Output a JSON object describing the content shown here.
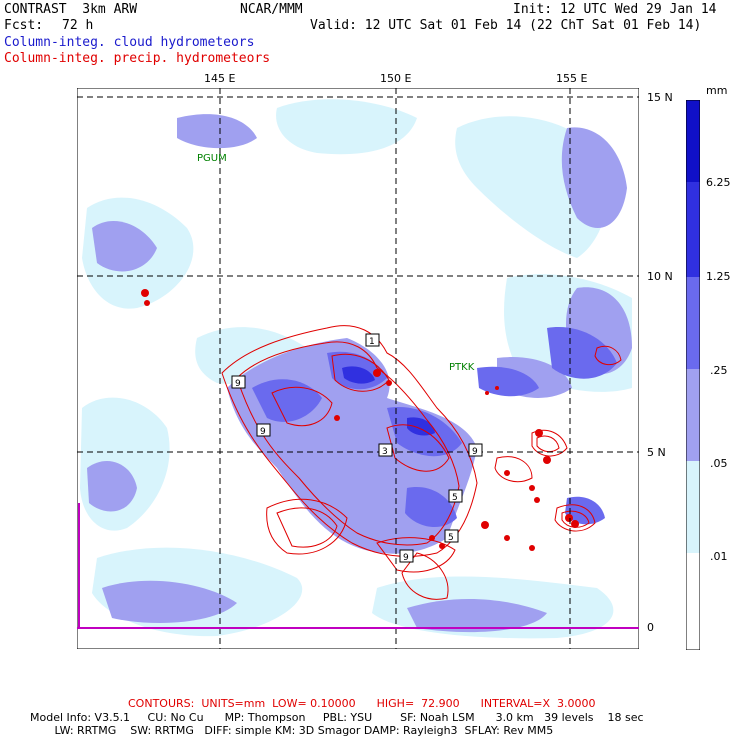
{
  "header": {
    "model": "CONTRAST  3km ARW",
    "center": "NCAR/MMM",
    "init": "Init: 12 UTC Wed 29 Jan 14",
    "fcst_label": "Fcst:",
    "fcst_value": "72 h",
    "valid": "Valid: 12 UTC Sat 01 Feb 14 (22 ChT Sat 01 Feb 14)",
    "field1": "Column-integ. cloud hydrometeors",
    "field2": "Column-integ. precip. hydrometeors"
  },
  "map": {
    "lon_labels": [
      "145 E",
      "150 E",
      "155 E"
    ],
    "lat_labels": [
      "15 N",
      "10 N",
      "5 N",
      "0"
    ],
    "stations": [
      "PGUM",
      "PTKK"
    ],
    "contour_labels": [
      "9",
      "9",
      "1",
      "3",
      "9",
      "5",
      "5",
      "9"
    ],
    "colors": {
      "land_blue": "#6a6aee",
      "light_fill": "#c8ecf8",
      "mid_fill": "#a0a0f0",
      "contour_red": "#e00000",
      "grid": "#000000"
    }
  },
  "colorbar": {
    "unit": "mm",
    "levels": [
      "6.25",
      "1.25",
      ".25",
      ".05",
      ".01"
    ],
    "colors": [
      "#1010c8",
      "#3030e0",
      "#6a6aee",
      "#a0a0f0",
      "#d8f4fc",
      "#ffffff"
    ]
  },
  "footer": {
    "contours": "CONTOURS:  UNITS=mm  LOW= 0.10000      HIGH=  72.900      INTERVAL=X  3.0000",
    "line1": "Model Info: V3.5.1     CU: No Cu      MP: Thompson     PBL: YSU        SF: Noah LSM      3.0 km   39 levels    18 sec",
    "line2": "       LW: RRTMG    SW: RRTMG   DIFF: simple KM: 3D Smagor DAMP: Rayleigh3  SFLAY: Rev MM5"
  }
}
